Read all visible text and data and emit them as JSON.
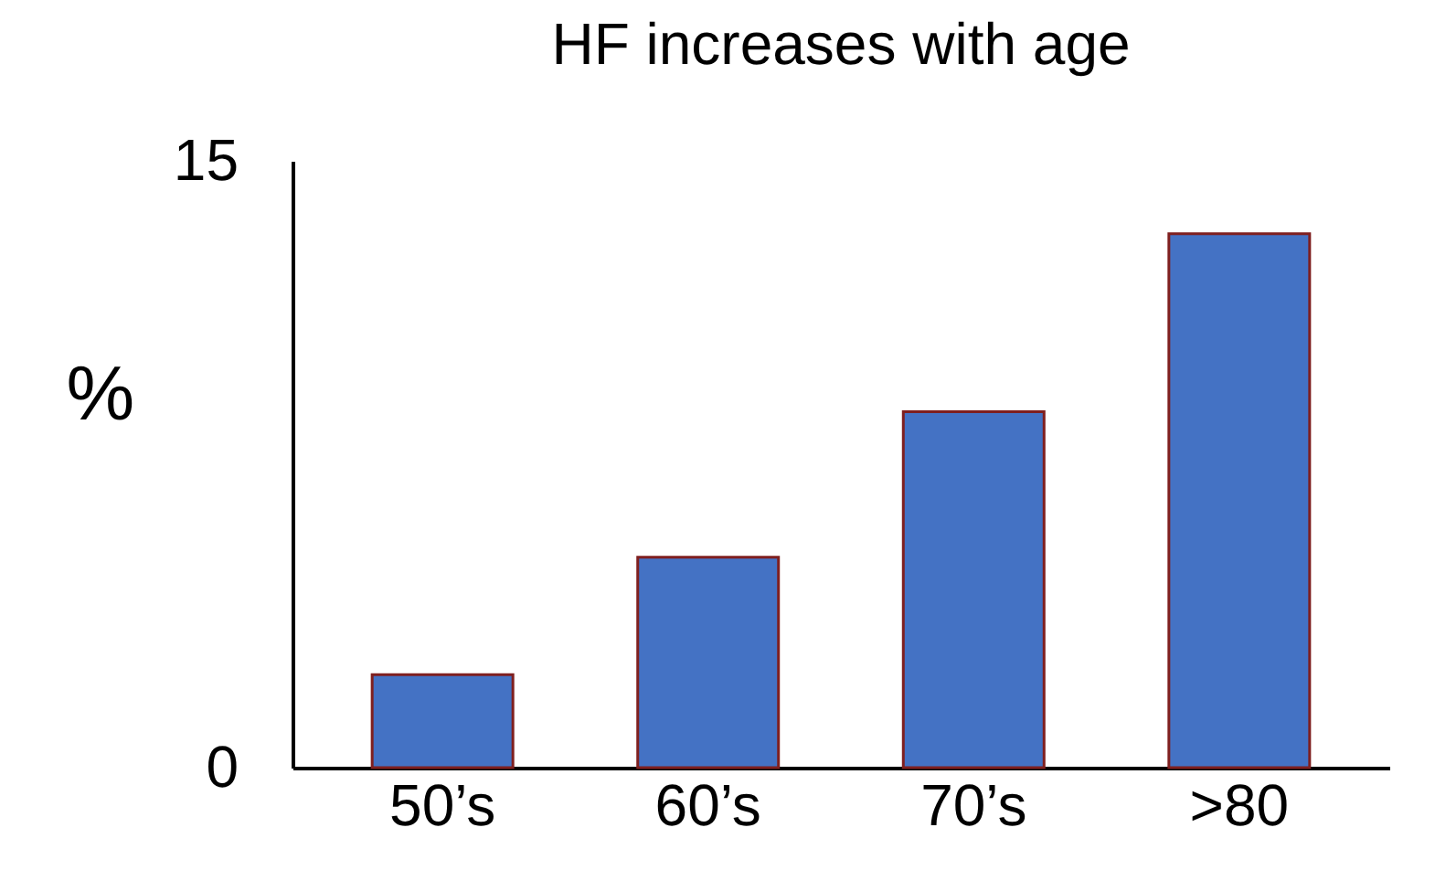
{
  "chart_data": {
    "type": "bar",
    "title": "HF increases with age",
    "ylabel": "%",
    "categories": [
      "50’s",
      "60’s",
      "70’s",
      ">80"
    ],
    "values": [
      2.3,
      5.2,
      8.8,
      13.2
    ],
    "color": "#4472c4",
    "ylim": [
      0,
      15
    ],
    "yticks": [
      0,
      15
    ],
    "grid": false
  }
}
